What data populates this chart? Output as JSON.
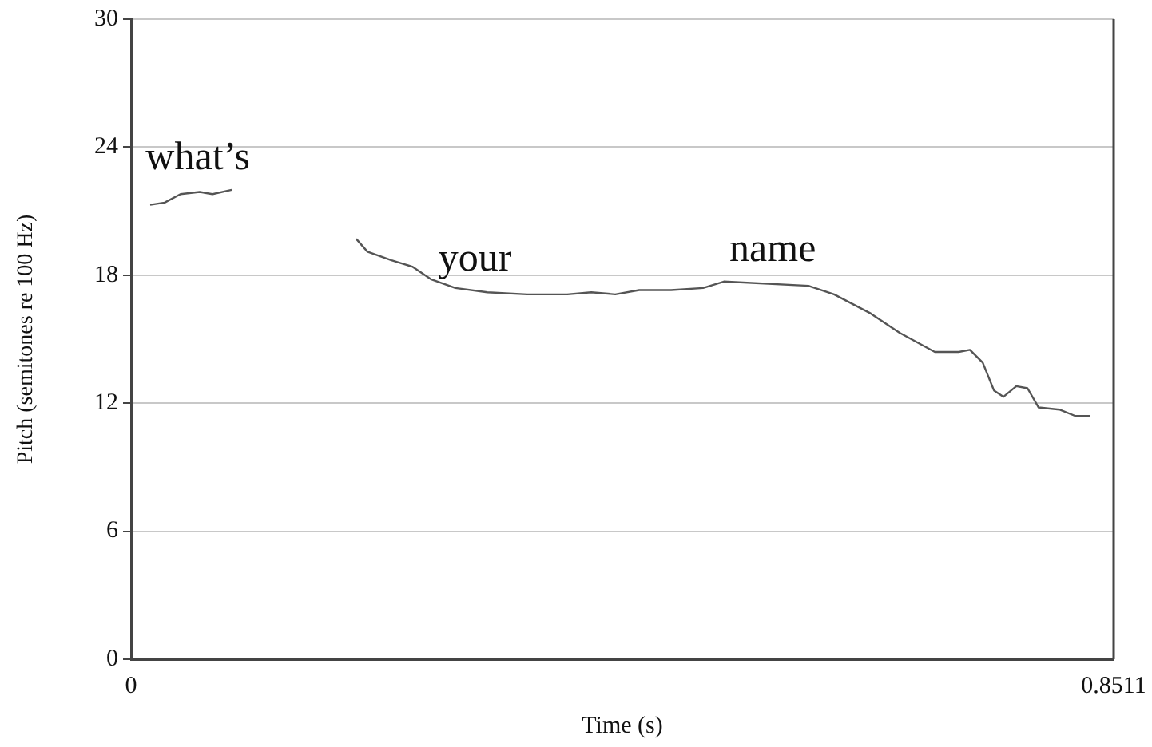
{
  "chart_data": {
    "type": "line",
    "xlabel": "Time (s)",
    "ylabel": "Pitch (semitones re 100 Hz)",
    "xlim": [
      0,
      0.8511
    ],
    "xticks": [
      0,
      0.8511
    ],
    "ylim": [
      0,
      30
    ],
    "yticks": [
      0,
      6,
      12,
      18,
      24,
      30
    ],
    "grid": "y",
    "marker": "none",
    "line_style": "solid",
    "series": [
      {
        "color": "#555555",
        "x": [
          0.0166,
          0.0291,
          0.0429,
          0.0595,
          0.0706,
          0.0872,
          0.14,
          0.1951,
          0.2048,
          0.2256,
          0.2436,
          0.2602,
          0.281,
          0.3086,
          0.3432,
          0.3778,
          0.3986,
          0.4194,
          0.4401,
          0.4678,
          0.4955,
          0.5135,
          0.5868,
          0.609,
          0.6408,
          0.6657,
          0.6962,
          0.7169,
          0.7266,
          0.7377,
          0.7474,
          0.7557,
          0.7668,
          0.7765,
          0.7861,
          0.8041,
          0.818,
          0.8304
        ],
        "values": [
          21.3,
          21.4,
          21.8,
          21.9,
          21.8,
          22.0,
          null,
          19.7,
          19.1,
          18.7,
          18.4,
          17.8,
          17.4,
          17.2,
          17.1,
          17.1,
          17.2,
          17.1,
          17.3,
          17.3,
          17.4,
          17.7,
          17.5,
          17.1,
          16.2,
          15.3,
          14.4,
          14.4,
          14.5,
          13.9,
          12.6,
          12.3,
          12.8,
          12.7,
          11.8,
          11.7,
          11.4,
          11.4
        ]
      }
    ],
    "annotations": [
      "what’s",
      "your",
      "name"
    ]
  }
}
